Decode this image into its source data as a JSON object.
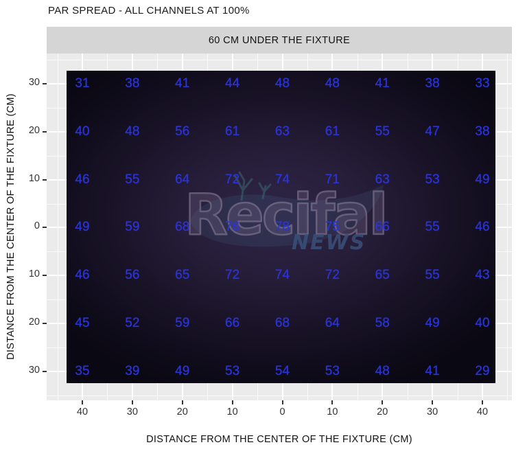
{
  "title": "PAR SPREAD - ALL CHANNELS AT 100%",
  "facet_label": "60 CM UNDER THE FIXTURE",
  "watermark": {
    "main": "Recifal",
    "sub": "NEWS"
  },
  "chart_data": {
    "type": "heatmap",
    "title": "PAR SPREAD - ALL CHANNELS AT 100%",
    "facet": "60 CM UNDER THE FIXTURE",
    "xlabel": "DISTANCE FROM THE CENTER OF THE FIXTURE (CM)",
    "ylabel": "DISTANCE FROM THE CENTER OF THE FIXTURE (CM)",
    "x_ticks": [
      "40",
      "30",
      "20",
      "10",
      "0",
      "10",
      "20",
      "30",
      "40"
    ],
    "y_ticks": [
      "30",
      "20",
      "10",
      "0",
      "10",
      "20",
      "30"
    ],
    "values": [
      [
        31,
        38,
        41,
        44,
        48,
        48,
        41,
        38,
        33
      ],
      [
        40,
        48,
        56,
        61,
        63,
        61,
        55,
        47,
        38
      ],
      [
        46,
        55,
        64,
        72,
        74,
        71,
        63,
        53,
        49
      ],
      [
        49,
        59,
        68,
        76,
        78,
        75,
        66,
        55,
        46
      ],
      [
        46,
        56,
        65,
        72,
        74,
        72,
        65,
        55,
        43
      ],
      [
        45,
        52,
        59,
        66,
        68,
        64,
        58,
        49,
        40
      ],
      [
        35,
        39,
        49,
        53,
        54,
        53,
        48,
        41,
        29
      ]
    ],
    "value_unit": "PAR",
    "grid": true,
    "legend": "none",
    "colors": {
      "value_text": "#2a33d6",
      "panel_bg": "#ebebeb",
      "strip_bg": "#d5d5d5",
      "gridline": "#ffffff",
      "raster_center": "#2f2546",
      "raster_edge": "#0a0812",
      "tick_text": "#333333"
    }
  }
}
